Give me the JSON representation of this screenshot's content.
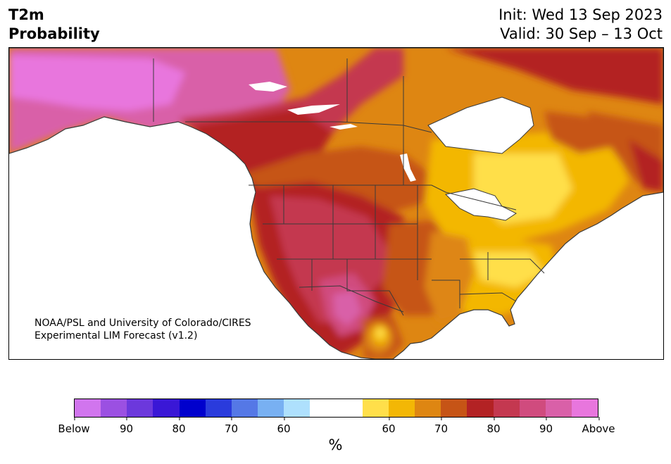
{
  "header": {
    "title_line1": "T2m",
    "title_line2": "Probability",
    "init": "Init: Wed 13 Sep 2023",
    "valid": "Valid: 30 Sep – 13 Oct"
  },
  "credit": {
    "line1": "NOAA/PSL and University of Colorado/CIRES",
    "line2": "Experimental LIM Forecast (v1.2)"
  },
  "map": {
    "region": "North America",
    "colors": {
      "land_neutral": "#ffffff",
      "water": "#ffffff",
      "border": "#3a3a3a"
    }
  },
  "colorbar": {
    "unit": "%",
    "colors": [
      "#d175ee",
      "#9b50e2",
      "#6c38dc",
      "#3a17d6",
      "#0000cd",
      "#2a3bdc",
      "#5578e6",
      "#78b0f2",
      "#aee0fd",
      "#ffffff",
      "#ffffff",
      "#ffdf4a",
      "#f3b705",
      "#de8612",
      "#c65416",
      "#b32224",
      "#c43850",
      "#d04b7e",
      "#d960a8",
      "#e876dd"
    ],
    "tick_labels": [
      "Below",
      "90",
      "80",
      "70",
      "60",
      "60",
      "70",
      "80",
      "90",
      "Above"
    ]
  }
}
